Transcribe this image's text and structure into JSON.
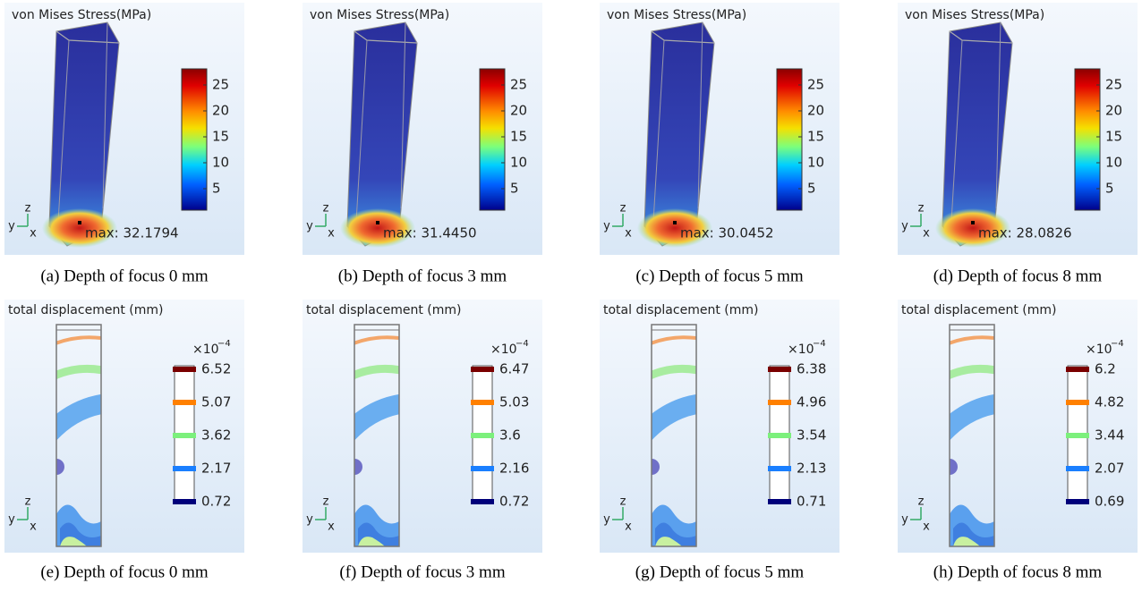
{
  "stress_panels": [
    {
      "title": "von Mises Stress(MPa)",
      "colorbar_ticks": [
        "25",
        "20",
        "15",
        "10",
        "5"
      ],
      "max_label": "max: 32.1794",
      "axes": [
        "z",
        "y",
        "x"
      ],
      "caption": "(a) Depth of focus 0 mm"
    },
    {
      "title": "von Mises Stress(MPa)",
      "colorbar_ticks": [
        "25",
        "20",
        "15",
        "10",
        "5"
      ],
      "max_label": "max: 31.4450",
      "axes": [
        "z",
        "y",
        "x"
      ],
      "caption": "(b) Depth of focus 3 mm"
    },
    {
      "title": "von Mises Stress(MPa)",
      "colorbar_ticks": [
        "25",
        "20",
        "15",
        "10",
        "5"
      ],
      "max_label": "max: 30.0452",
      "axes": [
        "z",
        "y",
        "x"
      ],
      "caption": "(c) Depth of focus 5 mm"
    },
    {
      "title": "von Mises Stress(MPa)",
      "colorbar_ticks": [
        "25",
        "20",
        "15",
        "10",
        "5"
      ],
      "max_label": "max: 28.0826",
      "axes": [
        "z",
        "y",
        "x"
      ],
      "caption": "(d) Depth of focus 8 mm"
    }
  ],
  "displacement_panels": [
    {
      "title": "total displacement (mm)",
      "multiplier": {
        "base": "×10",
        "exponent": "−4"
      },
      "levels": [
        6.52,
        5.07,
        3.62,
        2.17,
        0.72
      ],
      "axes": [
        "z",
        "y",
        "x"
      ],
      "caption": "(e) Depth of focus 0 mm"
    },
    {
      "title": "total displacement (mm)",
      "multiplier": {
        "base": "×10",
        "exponent": "−4"
      },
      "levels": [
        6.47,
        5.03,
        3.6,
        2.16,
        0.72
      ],
      "axes": [
        "z",
        "y",
        "x"
      ],
      "caption": "(f) Depth of focus 3 mm"
    },
    {
      "title": "total displacement (mm)",
      "multiplier": {
        "base": "×10",
        "exponent": "−4"
      },
      "levels": [
        6.38,
        4.96,
        3.54,
        2.13,
        0.71
      ],
      "axes": [
        "z",
        "y",
        "x"
      ],
      "caption": "(g) Depth of focus 5 mm"
    },
    {
      "title": "total displacement (mm)",
      "multiplier": {
        "base": "×10",
        "exponent": "−4"
      },
      "levels": [
        6.2,
        4.82,
        3.44,
        2.07,
        0.69
      ],
      "axes": [
        "z",
        "y",
        "x"
      ],
      "caption": "(h) Depth of focus 8 mm"
    }
  ]
}
